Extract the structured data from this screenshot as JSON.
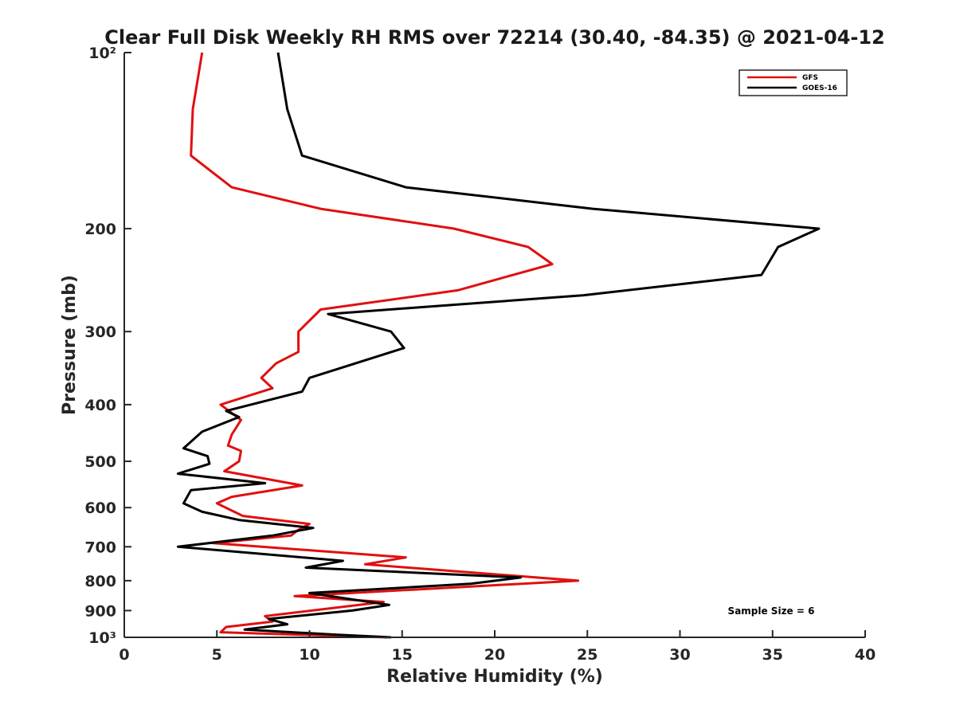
{
  "chart_data": {
    "type": "line",
    "title": "Clear Full Disk Weekly RH RMS over 72214 (30.40, -84.35) @ 2021-04-12",
    "xlabel": "Relative Humidity (%)",
    "ylabel": "Pressure (mb)",
    "xlim": [
      0,
      40
    ],
    "ylim": [
      100,
      1000
    ],
    "yscale": "log",
    "y_reversed": true,
    "x_ticks": [
      0,
      5,
      10,
      15,
      20,
      25,
      30,
      35,
      40
    ],
    "x_tick_labels": [
      "0",
      "5",
      "10",
      "15",
      "20",
      "25",
      "30",
      "35",
      "40"
    ],
    "y_ticks": [
      100,
      200,
      300,
      400,
      500,
      600,
      700,
      800,
      900,
      1000
    ],
    "y_tick_labels": [
      "10²",
      "200",
      "300",
      "400",
      "500",
      "600",
      "700",
      "800",
      "900",
      "10³"
    ],
    "legend_position": "top-right",
    "annotation": "Sample Size = 6",
    "series": [
      {
        "name": "GFS",
        "color": "#e01010",
        "points": [
          [
            4.2,
            100
          ],
          [
            3.7,
            125
          ],
          [
            3.6,
            150
          ],
          [
            5.8,
            170
          ],
          [
            10.6,
            185
          ],
          [
            17.8,
            200
          ],
          [
            21.8,
            215
          ],
          [
            23.1,
            230
          ],
          [
            18.0,
            255
          ],
          [
            10.6,
            275
          ],
          [
            9.4,
            300
          ],
          [
            9.4,
            325
          ],
          [
            8.2,
            340
          ],
          [
            7.4,
            360
          ],
          [
            8.0,
            375
          ],
          [
            5.2,
            400
          ],
          [
            6.3,
            425
          ],
          [
            5.8,
            450
          ],
          [
            5.6,
            470
          ],
          [
            6.3,
            480
          ],
          [
            6.2,
            500
          ],
          [
            5.4,
            520
          ],
          [
            9.6,
            550
          ],
          [
            5.8,
            575
          ],
          [
            5.0,
            590
          ],
          [
            6.4,
            620
          ],
          [
            10.0,
            640
          ],
          [
            9.4,
            655
          ],
          [
            9.0,
            670
          ],
          [
            4.8,
            690
          ],
          [
            15.2,
            730
          ],
          [
            13.0,
            750
          ],
          [
            24.5,
            800
          ],
          [
            9.2,
            850
          ],
          [
            14.0,
            870
          ],
          [
            7.6,
            920
          ],
          [
            8.0,
            940
          ],
          [
            5.5,
            960
          ],
          [
            5.2,
            980
          ],
          [
            14.2,
            1000
          ]
        ]
      },
      {
        "name": "GOES-16",
        "color": "#000000",
        "points": [
          [
            8.3,
            100
          ],
          [
            8.8,
            125
          ],
          [
            9.6,
            150
          ],
          [
            15.2,
            170
          ],
          [
            25.3,
            185
          ],
          [
            37.5,
            200
          ],
          [
            35.3,
            215
          ],
          [
            34.4,
            240
          ],
          [
            24.8,
            260
          ],
          [
            11.0,
            280
          ],
          [
            14.4,
            300
          ],
          [
            15.1,
            320
          ],
          [
            10.0,
            360
          ],
          [
            9.6,
            380
          ],
          [
            5.5,
            410
          ],
          [
            6.2,
            420
          ],
          [
            4.2,
            445
          ],
          [
            3.2,
            475
          ],
          [
            4.5,
            490
          ],
          [
            4.6,
            505
          ],
          [
            2.9,
            525
          ],
          [
            7.6,
            545
          ],
          [
            3.6,
            560
          ],
          [
            3.2,
            590
          ],
          [
            4.2,
            610
          ],
          [
            6.2,
            630
          ],
          [
            10.2,
            650
          ],
          [
            8.0,
            670
          ],
          [
            2.9,
            700
          ],
          [
            11.8,
            740
          ],
          [
            9.8,
            760
          ],
          [
            21.4,
            790
          ],
          [
            18.7,
            810
          ],
          [
            10.0,
            840
          ],
          [
            14.3,
            880
          ],
          [
            12.3,
            900
          ],
          [
            7.8,
            930
          ],
          [
            8.8,
            950
          ],
          [
            6.5,
            970
          ],
          [
            11.5,
            990
          ],
          [
            14.4,
            1000
          ]
        ]
      }
    ]
  }
}
